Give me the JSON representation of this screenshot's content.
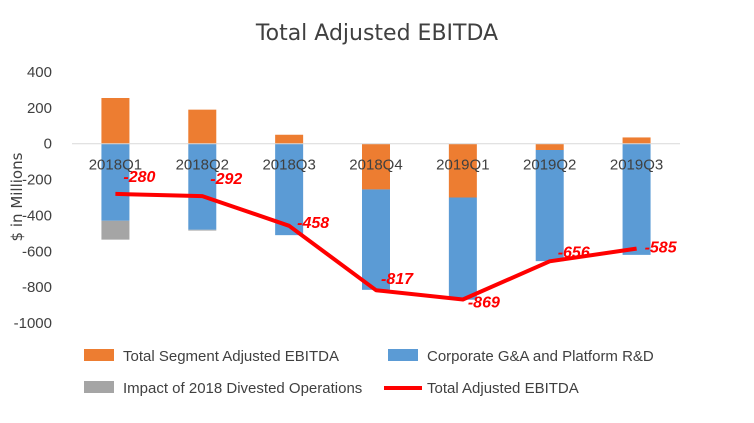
{
  "chart_data": {
    "type": "bar",
    "stacked": true,
    "title": "Total Adjusted EBITDA",
    "ylabel": "$ in Millions",
    "xlabel": "",
    "ylim": [
      -1000,
      400
    ],
    "yticks": [
      400,
      200,
      0,
      -200,
      -400,
      -600,
      -800,
      -1000
    ],
    "grid": false,
    "legend_position": "bottom",
    "categories": [
      "2018Q1",
      "2018Q2",
      "2018Q3",
      "2018Q4",
      "2019Q1",
      "2019Q2",
      "2019Q3"
    ],
    "series": [
      {
        "name": "Total Segment Adjusted EBITDA",
        "kind": "bar",
        "color": "#ed7d31",
        "values": [
          255,
          190,
          50,
          -255,
          -300,
          -35,
          35
        ]
      },
      {
        "name": "Corporate G&A and Platform R&D",
        "kind": "bar",
        "color": "#5b9bd5",
        "values": [
          -430,
          -480,
          -510,
          -560,
          -570,
          -620,
          -620
        ]
      },
      {
        "name": "Impact of 2018 Divested Operations",
        "kind": "bar",
        "color": "#a5a5a5",
        "values": [
          -105,
          -2,
          0,
          0,
          0,
          0,
          0
        ]
      },
      {
        "name": "Total Adjusted EBITDA",
        "kind": "line",
        "color": "#ff0000",
        "values": [
          -280,
          -292,
          -458,
          -817,
          -869,
          -656,
          -585
        ],
        "labels": [
          "-280",
          "-292",
          "-458",
          "-817",
          "-869",
          "-656",
          "-585"
        ]
      }
    ]
  }
}
